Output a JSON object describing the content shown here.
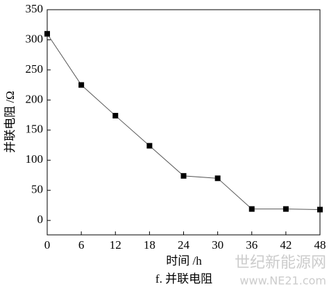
{
  "chart_data": {
    "type": "line",
    "x": [
      0,
      6,
      12,
      18,
      24,
      30,
      36,
      42,
      48
    ],
    "series": [
      {
        "name": "并联电阻",
        "color": "#000000",
        "values": [
          310,
          225,
          174,
          124,
          74,
          70,
          19,
          19,
          18
        ]
      }
    ],
    "xlim": [
      0,
      48
    ],
    "xticks": [
      0,
      6,
      12,
      18,
      24,
      30,
      36,
      42,
      48
    ],
    "ylim": [
      -24,
      350
    ],
    "yticks": [
      0,
      50,
      100,
      150,
      200,
      250,
      300,
      350
    ],
    "xlabel": "时间 /h",
    "ylabel": "并联电阻 /Ω",
    "caption": "f. 并联电阻",
    "watermark": "世纪新能源网",
    "watermark_url": "www.NE21.com"
  }
}
